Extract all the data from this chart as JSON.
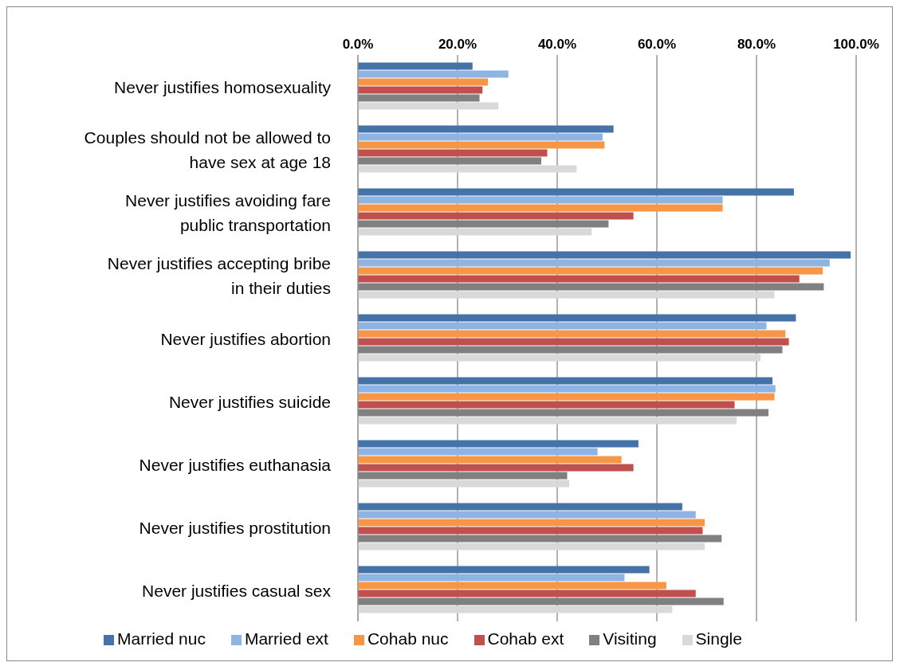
{
  "chart_data": {
    "type": "bar",
    "orientation": "horizontal",
    "categories": [
      "Never justifies homosexuality",
      "Couples should not be allowed to have sex at age 18",
      "Never justifies avoiding fare public transportation",
      "Never justifies  accepting bribe in their duties",
      "Never justifies abortion",
      "Never justifies suicide",
      "Never justifies euthanasia",
      "Never justifies prostitution",
      "Never justifies casual sex"
    ],
    "series": [
      {
        "name": "Married nuc",
        "color": "#4572a7",
        "values": [
          23.0,
          51.3,
          87.5,
          98.9,
          87.9,
          83.2,
          56.3,
          65.1,
          58.5
        ]
      },
      {
        "name": "Married ext",
        "color": "#8eb4e3",
        "values": [
          30.2,
          49.1,
          73.2,
          94.7,
          82.0,
          83.8,
          48.1,
          67.8,
          53.5
        ]
      },
      {
        "name": "Cohab nuc",
        "color": "#f79646",
        "values": [
          26.1,
          49.5,
          73.2,
          93.3,
          85.8,
          83.6,
          52.9,
          69.6,
          61.9
        ]
      },
      {
        "name": "Cohab ext",
        "color": "#c0504d",
        "values": [
          25.0,
          38.0,
          55.3,
          88.6,
          86.5,
          75.6,
          55.3,
          69.2,
          67.8
        ]
      },
      {
        "name": "Visiting",
        "color": "#808080",
        "values": [
          24.4,
          36.8,
          50.3,
          93.5,
          85.2,
          82.4,
          42.0,
          73.0,
          73.4
        ]
      },
      {
        "name": "Single",
        "color": "#d9d9d9",
        "values": [
          28.2,
          43.9,
          46.9,
          83.6,
          80.8,
          76.0,
          42.4,
          69.6,
          63.1
        ]
      }
    ],
    "xlim": [
      0,
      100
    ],
    "xticks": [
      {
        "value": 0,
        "label": "0.0%"
      },
      {
        "value": 20,
        "label": "20.0%"
      },
      {
        "value": 40,
        "label": "40.0%"
      },
      {
        "value": 60,
        "label": "60.0%"
      },
      {
        "value": 80,
        "label": "80.0%"
      },
      {
        "value": 100,
        "label": "100.0%"
      }
    ],
    "grid": "x",
    "legend": "bottom"
  }
}
